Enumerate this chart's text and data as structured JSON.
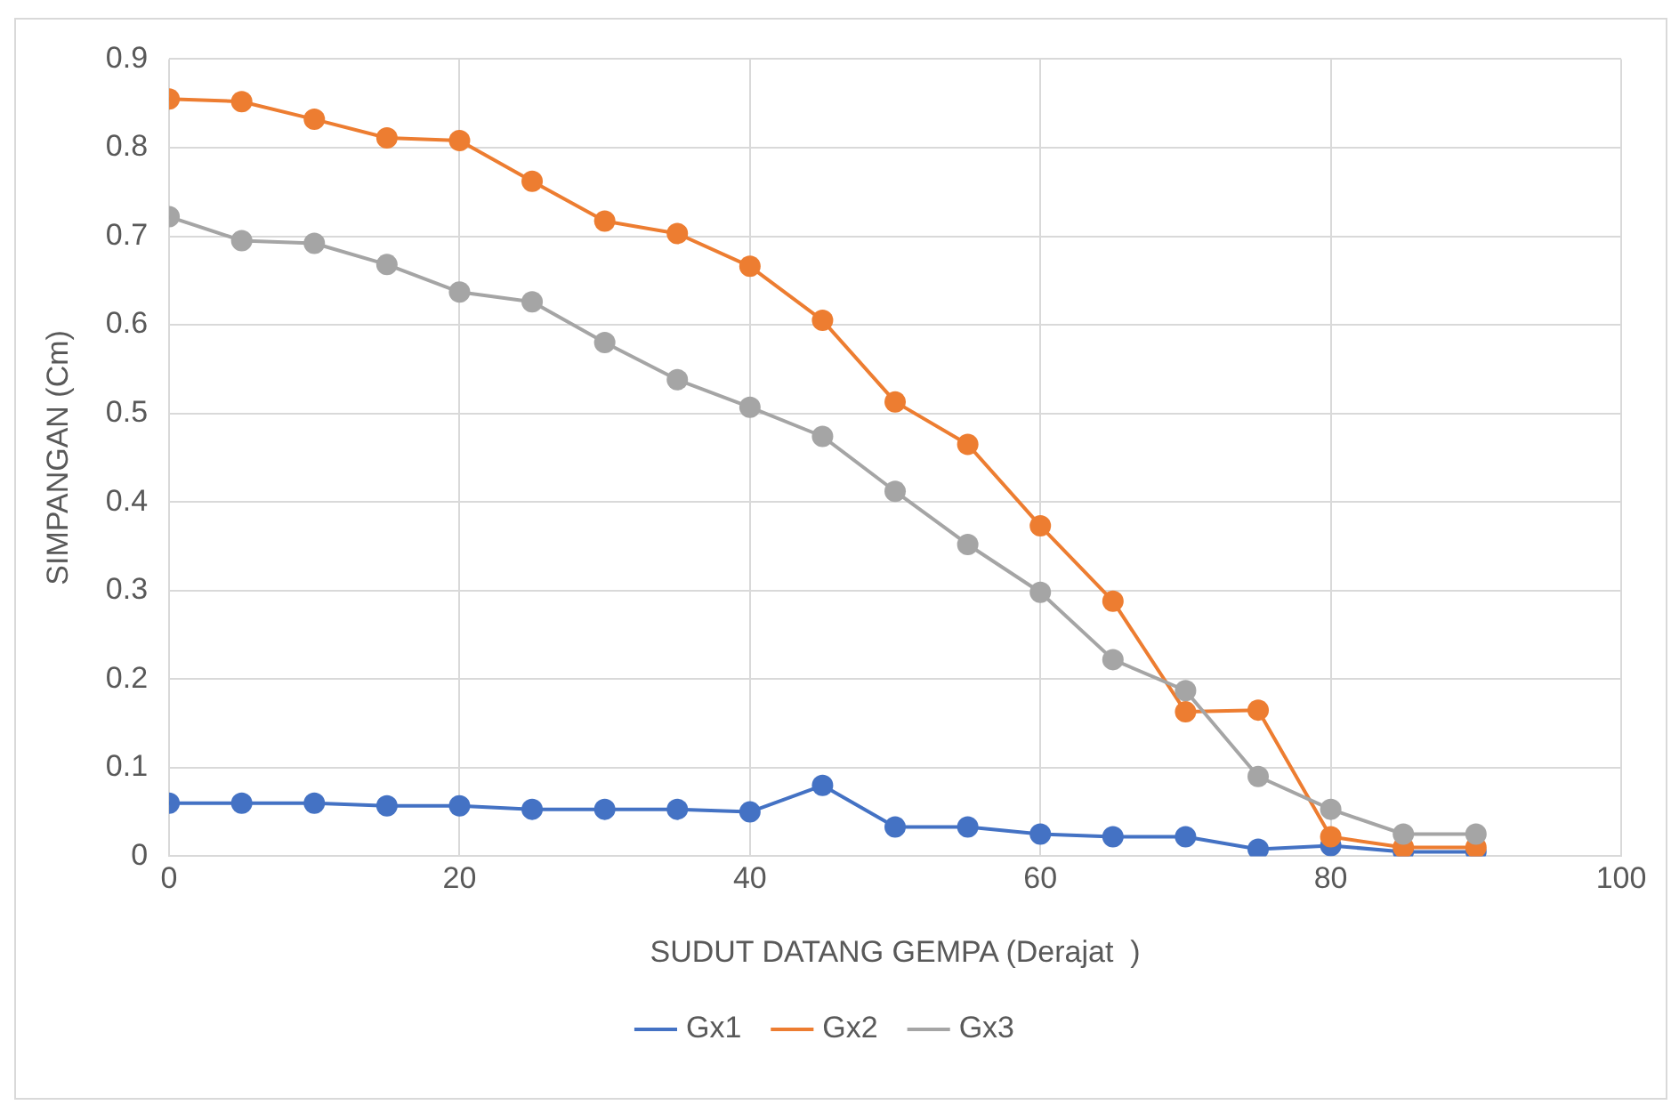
{
  "chart_data": {
    "type": "line",
    "xlabel": "SUDUT DATANG GEMPA (Derajat  )",
    "ylabel": "SIMPANGAN (Cm)",
    "x": [
      0,
      5,
      10,
      15,
      20,
      25,
      30,
      35,
      40,
      45,
      50,
      55,
      60,
      65,
      70,
      75,
      80,
      85,
      90
    ],
    "series": [
      {
        "name": "Gx1",
        "color": "#4472c4",
        "values": [
          0.06,
          0.06,
          0.06,
          0.057,
          0.057,
          0.053,
          0.053,
          0.053,
          0.05,
          0.08,
          0.033,
          0.033,
          0.025,
          0.022,
          0.022,
          0.008,
          0.012,
          0.005,
          0.005
        ]
      },
      {
        "name": "Gx2",
        "color": "#ed7d31",
        "values": [
          0.855,
          0.852,
          0.832,
          0.811,
          0.808,
          0.762,
          0.717,
          0.703,
          0.666,
          0.605,
          0.513,
          0.465,
          0.373,
          0.288,
          0.163,
          0.165,
          0.022,
          0.01,
          0.01
        ]
      },
      {
        "name": "Gx3",
        "color": "#a5a5a5",
        "values": [
          0.722,
          0.695,
          0.692,
          0.668,
          0.637,
          0.626,
          0.58,
          0.538,
          0.507,
          0.474,
          0.412,
          0.352,
          0.298,
          0.222,
          0.187,
          0.09,
          0.053,
          0.025,
          0.025
        ]
      }
    ],
    "xlim": [
      0,
      100
    ],
    "xticks": [
      0,
      20,
      40,
      60,
      80,
      100
    ],
    "ylim": [
      0,
      0.9
    ],
    "yticks": [
      0,
      0.1,
      0.2,
      0.3,
      0.4,
      0.5,
      0.6,
      0.7,
      0.8,
      0.9
    ],
    "grid": true,
    "legend": "bottom",
    "marker": "circle",
    "line_style": "solid"
  }
}
